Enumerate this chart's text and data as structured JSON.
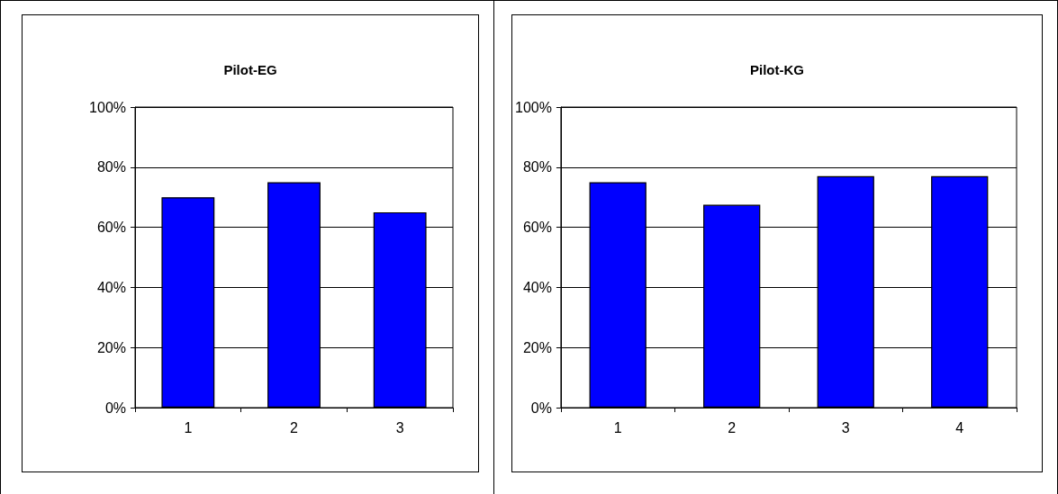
{
  "chart_data": [
    {
      "type": "bar",
      "title": "Pilot-EG",
      "categories": [
        "1",
        "2",
        "3"
      ],
      "values": [
        70,
        75,
        65
      ],
      "color": "#0000ff",
      "ylim": [
        0,
        100
      ],
      "yticks": [
        {
          "value": 0,
          "label": "0%"
        },
        {
          "value": 20,
          "label": "20%"
        },
        {
          "value": 40,
          "label": "40%"
        },
        {
          "value": 60,
          "label": "60%"
        },
        {
          "value": 80,
          "label": "80%"
        },
        {
          "value": 100,
          "label": "100%"
        }
      ],
      "grid": "y"
    },
    {
      "type": "bar",
      "title": "Pilot-KG",
      "categories": [
        "1",
        "2",
        "3",
        "4"
      ],
      "values": [
        75,
        67.5,
        77,
        77
      ],
      "color": "#0000ff",
      "ylim": [
        0,
        100
      ],
      "yticks": [
        {
          "value": 0,
          "label": "0%"
        },
        {
          "value": 20,
          "label": "20%"
        },
        {
          "value": 40,
          "label": "40%"
        },
        {
          "value": 60,
          "label": "60%"
        },
        {
          "value": 80,
          "label": "80%"
        },
        {
          "value": 100,
          "label": "100%"
        }
      ],
      "grid": "y"
    }
  ]
}
